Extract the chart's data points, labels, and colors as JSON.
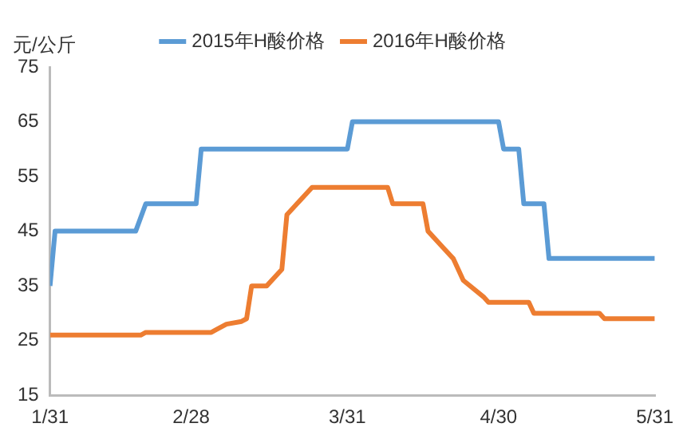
{
  "chart_data": {
    "type": "line",
    "ylabel": "元/公斤",
    "legend": "top",
    "grid": false,
    "marker": "none",
    "line_style": "solid",
    "xlim": [
      "--01-31",
      "--05-31"
    ],
    "xticks": [
      {
        "value": "--01-31",
        "label": "1/31"
      },
      {
        "value": "--02-28",
        "label": "2/28"
      },
      {
        "value": "--03-31",
        "label": "3/31"
      },
      {
        "value": "--04-30",
        "label": "4/30"
      },
      {
        "value": "--05-31",
        "label": "5/31"
      }
    ],
    "ylim": [
      15,
      75
    ],
    "yticks": [
      15,
      25,
      35,
      45,
      55,
      65,
      75
    ],
    "series": [
      {
        "name": "2015年H酸价格",
        "color": "#5b9bd5",
        "x": [
          "--01-31",
          "--02-01",
          "--02-17",
          "--02-19",
          "--03-01",
          "--03-02",
          "--03-31",
          "--04-01",
          "--04-30",
          "--05-01",
          "--05-04",
          "--05-05",
          "--05-09",
          "--05-10",
          "--05-31"
        ],
        "values": [
          35,
          45,
          45,
          50,
          50,
          60,
          60,
          65,
          65,
          60,
          60,
          50,
          50,
          40,
          40
        ]
      },
      {
        "name": "2016年H酸价格",
        "color": "#ed7d31",
        "x": [
          "--01-31",
          "--02-18",
          "--02-19",
          "--03-04",
          "--03-05",
          "--03-07",
          "--03-10",
          "--03-11",
          "--03-12",
          "--03-15",
          "--03-18",
          "--03-19",
          "--03-21",
          "--03-24",
          "--04-08",
          "--04-09",
          "--04-15",
          "--04-16",
          "--04-19",
          "--04-21",
          "--04-23",
          "--04-27",
          "--04-28",
          "--05-06",
          "--05-07",
          "--05-20",
          "--05-21",
          "--05-31"
        ],
        "values": [
          26,
          26,
          26.5,
          26.5,
          27,
          28,
          28.5,
          29,
          35,
          35,
          38,
          48,
          50,
          53,
          53,
          50,
          50,
          45,
          42,
          40,
          36,
          33,
          32,
          32,
          30,
          30,
          29,
          29
        ]
      }
    ]
  }
}
